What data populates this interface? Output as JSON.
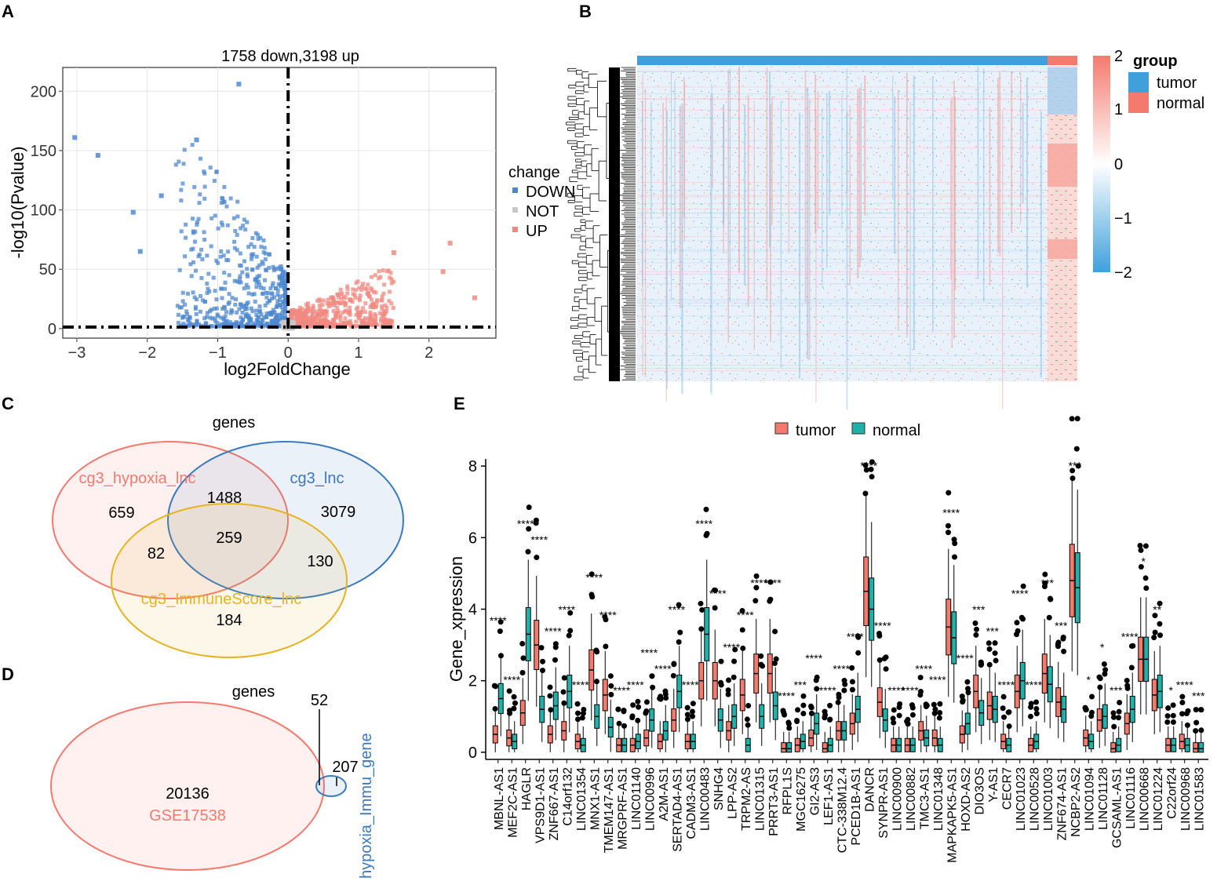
{
  "figure": {
    "panel_labels": [
      "A",
      "B",
      "C",
      "D",
      "E"
    ]
  },
  "chart_data": [
    {
      "panel": "A",
      "type": "scatter",
      "title": "1758 down,3198 up",
      "xlabel": "log2FoldChange",
      "ylabel": "-log10(Pvalue)",
      "xlim": [
        -3.2,
        2.95
      ],
      "ylim": [
        -8,
        220
      ],
      "xticks": [
        -3,
        -2,
        -1,
        0,
        1,
        2
      ],
      "yticks": [
        0,
        50,
        100,
        150,
        200
      ],
      "vline": 0,
      "hline": 1.3,
      "legend": {
        "title": "change",
        "entries": [
          {
            "label": "DOWN",
            "color": "#4d88cf"
          },
          {
            "label": "NOT",
            "color": "#c8c8c8"
          },
          {
            "label": "UP",
            "color": "#f08a80"
          }
        ]
      },
      "highlight_points": [
        {
          "x": -3.03,
          "y": 161,
          "change": "DOWN"
        },
        {
          "x": -2.7,
          "y": 146,
          "change": "DOWN"
        },
        {
          "x": -1.3,
          "y": 159,
          "change": "DOWN"
        },
        {
          "x": -0.7,
          "y": 206,
          "change": "DOWN"
        },
        {
          "x": -2.2,
          "y": 98,
          "change": "DOWN"
        },
        {
          "x": -1.8,
          "y": 112,
          "change": "DOWN"
        },
        {
          "x": -2.1,
          "y": 65,
          "change": "DOWN"
        },
        {
          "x": 1.5,
          "y": 64,
          "change": "UP"
        },
        {
          "x": 2.3,
          "y": 72,
          "change": "UP"
        },
        {
          "x": 2.65,
          "y": 26,
          "change": "UP"
        },
        {
          "x": 2.2,
          "y": 48,
          "change": "UP"
        }
      ]
    },
    {
      "panel": "B",
      "type": "heatmap",
      "legend_title": "group",
      "groups": [
        {
          "label": "tumor",
          "color": "#3fa0dc"
        },
        {
          "label": "normal",
          "color": "#f47a6e"
        }
      ],
      "colorbar_ticks": [
        "2",
        "1",
        "0",
        "−1",
        "−2"
      ],
      "colorbar_colors": [
        "#f47a6e",
        "#ffffff",
        "#3fa0dc"
      ]
    },
    {
      "panel": "C",
      "type": "venn",
      "title": "genes",
      "sets": [
        {
          "label": "cg3_hypoxia_lnc",
          "color": "#f47a6e"
        },
        {
          "label": "cg3_lnc",
          "color": "#3a78c0"
        },
        {
          "label": "cg3_ImmuneScore_lnc",
          "color": "#e6b422"
        }
      ],
      "regions": [
        {
          "sets": "hypoxia",
          "value": 659
        },
        {
          "sets": "hypoxia & lnc",
          "value": 1488
        },
        {
          "sets": "lnc",
          "value": 3079
        },
        {
          "sets": "hypoxia & immune",
          "value": 82
        },
        {
          "sets": "all",
          "value": 259
        },
        {
          "sets": "lnc & immune",
          "value": 130
        },
        {
          "sets": "immune",
          "value": 184
        }
      ]
    },
    {
      "panel": "D",
      "type": "venn",
      "title": "genes",
      "sets": [
        {
          "label": "GSE17538",
          "color": "#f47a6e"
        },
        {
          "label": "hypoxia_Immu_gene",
          "color": "#3a78c0"
        }
      ],
      "regions": [
        {
          "sets": "GSE17538 only",
          "value": 20136
        },
        {
          "sets": "overlap",
          "value": 52
        },
        {
          "sets": "hypoxia_Immu_gene only",
          "value": 207
        }
      ]
    },
    {
      "panel": "E",
      "type": "box",
      "ylabel": "Gene_xpression",
      "ylim": [
        -0.2,
        8.2
      ],
      "yticks": [
        0,
        2,
        4,
        6,
        8
      ],
      "legend": [
        {
          "label": "tumor",
          "color": "#f47a6e"
        },
        {
          "label": "normal",
          "color": "#20b2aa"
        }
      ],
      "genes": [
        {
          "name": "MBNL-AS1",
          "tumor": 0.5,
          "normal": 1.5,
          "sig": "****"
        },
        {
          "name": "MEF2C-AS1",
          "tumor": 0.4,
          "normal": 0.3,
          "sig": "****"
        },
        {
          "name": "HAGLR",
          "tumor": 1.1,
          "normal": 3.3,
          "sig": "****"
        },
        {
          "name": "VPS9D1-AS1",
          "tumor": 3.0,
          "normal": 1.2,
          "sig": "****"
        },
        {
          "name": "ZNF667-AS1",
          "tumor": 0.5,
          "normal": 1.3,
          "sig": "****"
        },
        {
          "name": "C14orf132",
          "tumor": 0.6,
          "normal": 1.7,
          "sig": "****"
        },
        {
          "name": "LINC01354",
          "tumor": 0.3,
          "normal": 0.2,
          "sig": "****"
        },
        {
          "name": "MNX1-AS1",
          "tumor": 2.3,
          "normal": 1.0,
          "sig": "****"
        },
        {
          "name": "TMEM147-AS1",
          "tumor": 1.6,
          "normal": 0.7,
          "sig": "****"
        },
        {
          "name": "MRGPRF-AS1",
          "tumor": 0.2,
          "normal": 0.2,
          "sig": "****"
        },
        {
          "name": "LINC01140",
          "tumor": 0.2,
          "normal": 0.3,
          "sig": "****"
        },
        {
          "name": "LINC00996",
          "tumor": 0.4,
          "normal": 0.9,
          "sig": "****"
        },
        {
          "name": "A2M-AS1",
          "tumor": 0.3,
          "normal": 0.6,
          "sig": "****"
        },
        {
          "name": "SERTAD4-AS1",
          "tumor": 0.9,
          "normal": 1.7,
          "sig": "****"
        },
        {
          "name": "CADM3-AS1",
          "tumor": 0.3,
          "normal": 0.3,
          "sig": "****"
        },
        {
          "name": "LINC00483",
          "tumor": 2.0,
          "normal": 3.3,
          "sig": "****"
        },
        {
          "name": "SNHG4",
          "tumor": 2.0,
          "normal": 0.9,
          "sig": "****"
        },
        {
          "name": "LPP-AS2",
          "tumor": 0.6,
          "normal": 1.0,
          "sig": "****"
        },
        {
          "name": "TRPM2-AS",
          "tumor": 1.6,
          "normal": 0.2,
          "sig": "****"
        },
        {
          "name": "LINC01315",
          "tumor": 2.2,
          "normal": 1.0,
          "sig": "****"
        },
        {
          "name": "PRRT3-AS1",
          "tumor": 2.2,
          "normal": 1.3,
          "sig": "****"
        },
        {
          "name": "RFPL1S",
          "tumor": 0.1,
          "normal": 0.1,
          "sig": "****"
        },
        {
          "name": "MGC16275",
          "tumor": 0.2,
          "normal": 0.3,
          "sig": "***"
        },
        {
          "name": "GI2-AS3",
          "tumor": 0.4,
          "normal": 0.8,
          "sig": "****"
        },
        {
          "name": "LEF1-AS1",
          "tumor": 0.1,
          "normal": 0.2,
          "sig": "****"
        },
        {
          "name": "CTC-338M12.4",
          "tumor": 0.6,
          "normal": 0.6,
          "sig": "****"
        },
        {
          "name": "PCED1B-AS1",
          "tumor": 0.8,
          "normal": 1.2,
          "sig": "****"
        },
        {
          "name": "DANCR",
          "tumor": 4.5,
          "normal": 4.0,
          "sig": "****"
        },
        {
          "name": "SYNPR-AS1",
          "tumor": 1.4,
          "normal": 0.9,
          "sig": "****"
        },
        {
          "name": "LINC00900",
          "tumor": 0.2,
          "normal": 0.2,
          "sig": "****"
        },
        {
          "name": "LINC00882",
          "tumor": 0.2,
          "normal": 0.2,
          "sig": "****"
        },
        {
          "name": "TMC3-AS1",
          "tumor": 0.6,
          "normal": 0.4,
          "sig": "****"
        },
        {
          "name": "LINC01348",
          "tumor": 0.4,
          "normal": 0.2,
          "sig": "****"
        },
        {
          "name": "MAPKAPK5-AS1",
          "tumor": 3.5,
          "normal": 3.2,
          "sig": "****"
        },
        {
          "name": "HOXD-AS2",
          "tumor": 0.5,
          "normal": 0.8,
          "sig": "****"
        },
        {
          "name": "DIO3OS",
          "tumor": 1.7,
          "normal": 1.1,
          "sig": "***"
        },
        {
          "name": "Y-AS1",
          "tumor": 1.3,
          "normal": 1.2,
          "sig": "***"
        },
        {
          "name": "CECR7",
          "tumor": 0.3,
          "normal": 0.2,
          "sig": "****"
        },
        {
          "name": "LINC01023",
          "tumor": 1.7,
          "normal": 2.0,
          "sig": "****"
        },
        {
          "name": "LINC00528",
          "tumor": 0.2,
          "normal": 0.3,
          "sig": "****"
        },
        {
          "name": "LINC01003",
          "tumor": 2.2,
          "normal": 1.9,
          "sig": "***"
        },
        {
          "name": "ZNF674-AS1",
          "tumor": 1.4,
          "normal": 1.2,
          "sig": "***"
        },
        {
          "name": "NCBP2-AS2",
          "tumor": 4.8,
          "normal": 4.6,
          "sig": "***"
        },
        {
          "name": "LINC01094",
          "tumor": 0.4,
          "normal": 0.3,
          "sig": "*"
        },
        {
          "name": "LINC01128",
          "tumor": 0.9,
          "normal": 1.0,
          "sig": "*"
        },
        {
          "name": "GCSAML-AS1",
          "tumor": 0.1,
          "normal": 0.2,
          "sig": "***"
        },
        {
          "name": "LINC01116",
          "tumor": 0.8,
          "normal": 1.2,
          "sig": "****"
        },
        {
          "name": "LINC00668",
          "tumor": 2.6,
          "normal": 2.6,
          "sig": "*"
        },
        {
          "name": "LINC01224",
          "tumor": 1.6,
          "normal": 1.7,
          "sig": "**"
        },
        {
          "name": "C22orf24",
          "tumor": 0.2,
          "normal": 0.2,
          "sig": "*"
        },
        {
          "name": "LINC00968",
          "tumor": 0.3,
          "normal": 0.2,
          "sig": "****"
        },
        {
          "name": "LINC01583",
          "tumor": 0.1,
          "normal": 0.1,
          "sig": "***"
        }
      ]
    }
  ]
}
